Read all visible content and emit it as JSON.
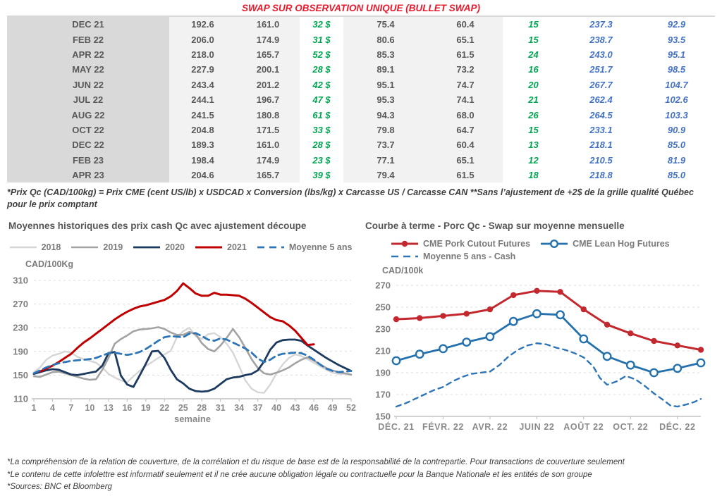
{
  "title": "SWAP SUR OBSERVATION UNIQUE (BULLET SWAP)",
  "table": {
    "rows": [
      [
        "DEC 21",
        "192.6",
        "161.0",
        "32 $",
        "75.4",
        "60.4",
        "15",
        "237.3",
        "92.9"
      ],
      [
        "FEB 22",
        "206.0",
        "174.9",
        "31 $",
        "80.6",
        "65.1",
        "15",
        "238.7",
        "93.5"
      ],
      [
        "APR 22",
        "218.0",
        "165.7",
        "52 $",
        "85.3",
        "61.5",
        "24",
        "243.0",
        "95.1"
      ],
      [
        "MAY 22",
        "227.9",
        "200.1",
        "28 $",
        "89.1",
        "73.2",
        "16",
        "251.7",
        "98.5"
      ],
      [
        "JUN 22",
        "243.4",
        "201.2",
        "42 $",
        "95.1",
        "74.7",
        "20",
        "267.7",
        "104.7"
      ],
      [
        "JUL 22",
        "244.1",
        "196.7",
        "47 $",
        "95.3",
        "74.1",
        "21",
        "262.4",
        "102.6"
      ],
      [
        "AUG 22",
        "241.5",
        "180.8",
        "61 $",
        "94.3",
        "68.0",
        "26",
        "264.5",
        "103.3"
      ],
      [
        "OCT 22",
        "204.8",
        "171.5",
        "33 $",
        "79.8",
        "64.7",
        "15",
        "233.1",
        "90.9"
      ],
      [
        "DEC 22",
        "189.3",
        "161.0",
        "28 $",
        "73.7",
        "60.4",
        "13",
        "218.1",
        "85.0"
      ],
      [
        "FEB 23",
        "198.4",
        "174.9",
        "23 $",
        "77.1",
        "65.1",
        "12",
        "210.5",
        "81.9"
      ],
      [
        "APR 23",
        "204.6",
        "165.7",
        "39 $",
        "79.4",
        "61.5",
        "18",
        "218.8",
        "85.0"
      ]
    ]
  },
  "table_footnote": "*Prix Qc (CAD/100kg) = Prix CME (cent US/lb) x USDCAD x Conversion (lbs/kg) x Carcasse US / Carcasse CAN **Sans l’ajustement de +2$ de la grille qualité Québec pour le prix comptant",
  "chart_data": [
    {
      "type": "line",
      "title": "Moyennes historiques des prix cash Qc avec ajustement découpe",
      "y_unit": "CAD/100Kg",
      "xlabel": "semaine",
      "ylim": [
        110,
        310
      ],
      "ytick_step": 40,
      "x_range": [
        1,
        52
      ],
      "x_ticks": [
        1,
        4,
        7,
        10,
        13,
        16,
        19,
        22,
        25,
        28,
        31,
        34,
        37,
        40,
        43,
        46,
        49,
        52
      ],
      "series": [
        {
          "name": "2018",
          "color": "#d6d6d6",
          "width": 2.4,
          "values": [
            155,
            163,
            176,
            183,
            186,
            190,
            188,
            181,
            177,
            174,
            171,
            163,
            152,
            146,
            141,
            138,
            148,
            157,
            165,
            172,
            179,
            185,
            191,
            214,
            224,
            230,
            216,
            211,
            219,
            221,
            214,
            203,
            188,
            165,
            141,
            127,
            121,
            120,
            134,
            153,
            168,
            179,
            185,
            182,
            177,
            171,
            165,
            159,
            154,
            152,
            152,
            150
          ]
        },
        {
          "name": "2019",
          "color": "#a3a3a3",
          "width": 2.6,
          "values": [
            148,
            147,
            151,
            155,
            156,
            153,
            150,
            147,
            144,
            142,
            143,
            159,
            179,
            203,
            211,
            217,
            224,
            227,
            228,
            229,
            231,
            228,
            222,
            218,
            218,
            223,
            219,
            204,
            194,
            190,
            200,
            213,
            228,
            214,
            196,
            177,
            162,
            153,
            151,
            154,
            158,
            163,
            170,
            176,
            180,
            175,
            168,
            162,
            158,
            155,
            153,
            151
          ]
        },
        {
          "name": "2020",
          "color": "#1d3a5f",
          "width": 2.8,
          "values": [
            152,
            155,
            158,
            160,
            159,
            155,
            151,
            150,
            152,
            154,
            156,
            166,
            187,
            189,
            149,
            134,
            130,
            149,
            169,
            190,
            191,
            179,
            159,
            143,
            136,
            127,
            123,
            122,
            123,
            127,
            135,
            143,
            146,
            147,
            150,
            152,
            158,
            173,
            193,
            205,
            209,
            210,
            210,
            208,
            200,
            193,
            186,
            179,
            173,
            167,
            162,
            157
          ]
        },
        {
          "name": "2021",
          "color": "#c00000",
          "width": 3,
          "values": [
            null,
            156,
            161,
            166,
            172,
            179,
            186,
            196,
            205,
            212,
            220,
            228,
            236,
            244,
            251,
            257,
            262,
            266,
            268,
            271,
            274,
            277,
            283,
            292,
            305,
            297,
            288,
            284,
            284,
            289,
            286,
            286,
            285,
            284,
            279,
            272,
            264,
            256,
            248,
            243,
            241,
            234,
            225,
            213,
            201,
            202,
            null,
            null,
            null,
            null,
            null,
            null
          ]
        },
        {
          "name": "Moyenne 5 ans",
          "color": "#2e75b6",
          "width": 2.8,
          "dashed": true,
          "dash": "9,6",
          "values": [
            153,
            158,
            163,
            167,
            170,
            172,
            174,
            175,
            176,
            177,
            179,
            183,
            187,
            188,
            186,
            184,
            186,
            189,
            194,
            201,
            208,
            214,
            216,
            215,
            214,
            220,
            221,
            216,
            210,
            208,
            212,
            210,
            205,
            200,
            195,
            188,
            178,
            172,
            176,
            183,
            186,
            187,
            188,
            187,
            183,
            176,
            168,
            161,
            157,
            155,
            156,
            157
          ]
        }
      ]
    },
    {
      "type": "line",
      "title": "Courbe à terme - Porc Qc - Swap sur moyenne mensuelle",
      "y_unit": "CAD/100k",
      "ylim": [
        150,
        270
      ],
      "ytick_step": 20,
      "x_range": [
        0,
        13
      ],
      "x_labels": [
        {
          "pos": 0,
          "label": "DÉC. 21"
        },
        {
          "pos": 2,
          "label": "FÉVR. 22"
        },
        {
          "pos": 4,
          "label": "AVR. 22"
        },
        {
          "pos": 6,
          "label": "JUIN 22"
        },
        {
          "pos": 8,
          "label": "AOÛT 22"
        },
        {
          "pos": 10,
          "label": "OCT. 22"
        },
        {
          "pos": 12,
          "label": "DÉC. 22"
        }
      ],
      "series": [
        {
          "name": "CME Pork Cutout Futures",
          "color": "#c2282e",
          "width": 3,
          "marker": "filled",
          "values": [
            239,
            240,
            242,
            244,
            248,
            261,
            265,
            264,
            248,
            234,
            226,
            219,
            215,
            211
          ]
        },
        {
          "name": "CME Lean Hog Futures",
          "color": "#2471ad",
          "width": 2.8,
          "marker": "open",
          "values": [
            201,
            207,
            212,
            218,
            223,
            237,
            244,
            243,
            221,
            205,
            197,
            190,
            194,
            199
          ]
        },
        {
          "name": "Moyenne 5 ans - Cash",
          "color": "#2e75b6",
          "width": 2.4,
          "dashed": true,
          "dash": "7,6",
          "values": [
            [
              0,
              159
            ],
            [
              0.4,
              162
            ],
            [
              0.8,
              166
            ],
            [
              1.2,
              170
            ],
            [
              1.6,
              174
            ],
            [
              2,
              177
            ],
            [
              2.4,
              182
            ],
            [
              2.8,
              186
            ],
            [
              3.2,
              189
            ],
            [
              3.6,
              190
            ],
            [
              4,
              191
            ],
            [
              4.4,
              197
            ],
            [
              4.8,
              205
            ],
            [
              5.2,
              211
            ],
            [
              5.6,
              215
            ],
            [
              6,
              217
            ],
            [
              6.4,
              216
            ],
            [
              6.8,
              213
            ],
            [
              7.2,
              211
            ],
            [
              7.6,
              208
            ],
            [
              8,
              204
            ],
            [
              8.4,
              196
            ],
            [
              8.7,
              185
            ],
            [
              9,
              179
            ],
            [
              9.4,
              182
            ],
            [
              9.8,
              187
            ],
            [
              10.2,
              184
            ],
            [
              10.6,
              178
            ],
            [
              11,
              171
            ],
            [
              11.4,
              165
            ],
            [
              11.7,
              160
            ],
            [
              12,
              159
            ],
            [
              12.4,
              161
            ],
            [
              12.7,
              163
            ],
            [
              13,
              166
            ]
          ]
        }
      ]
    }
  ],
  "footer": {
    "lines": [
      "*La compréhension de la relation de couverture, de la corrélation et du risque de base est de la responsabilité de la contrepartie. Pour transactions de couverture seulement",
      "*Le contenu de cette infolettre est informatif seulement et il ne crée aucune obligation légale ou contractuelle pour la Banque Nationale et les entités de son groupe",
      "*Sources: BNC et Bloomberg"
    ]
  }
}
